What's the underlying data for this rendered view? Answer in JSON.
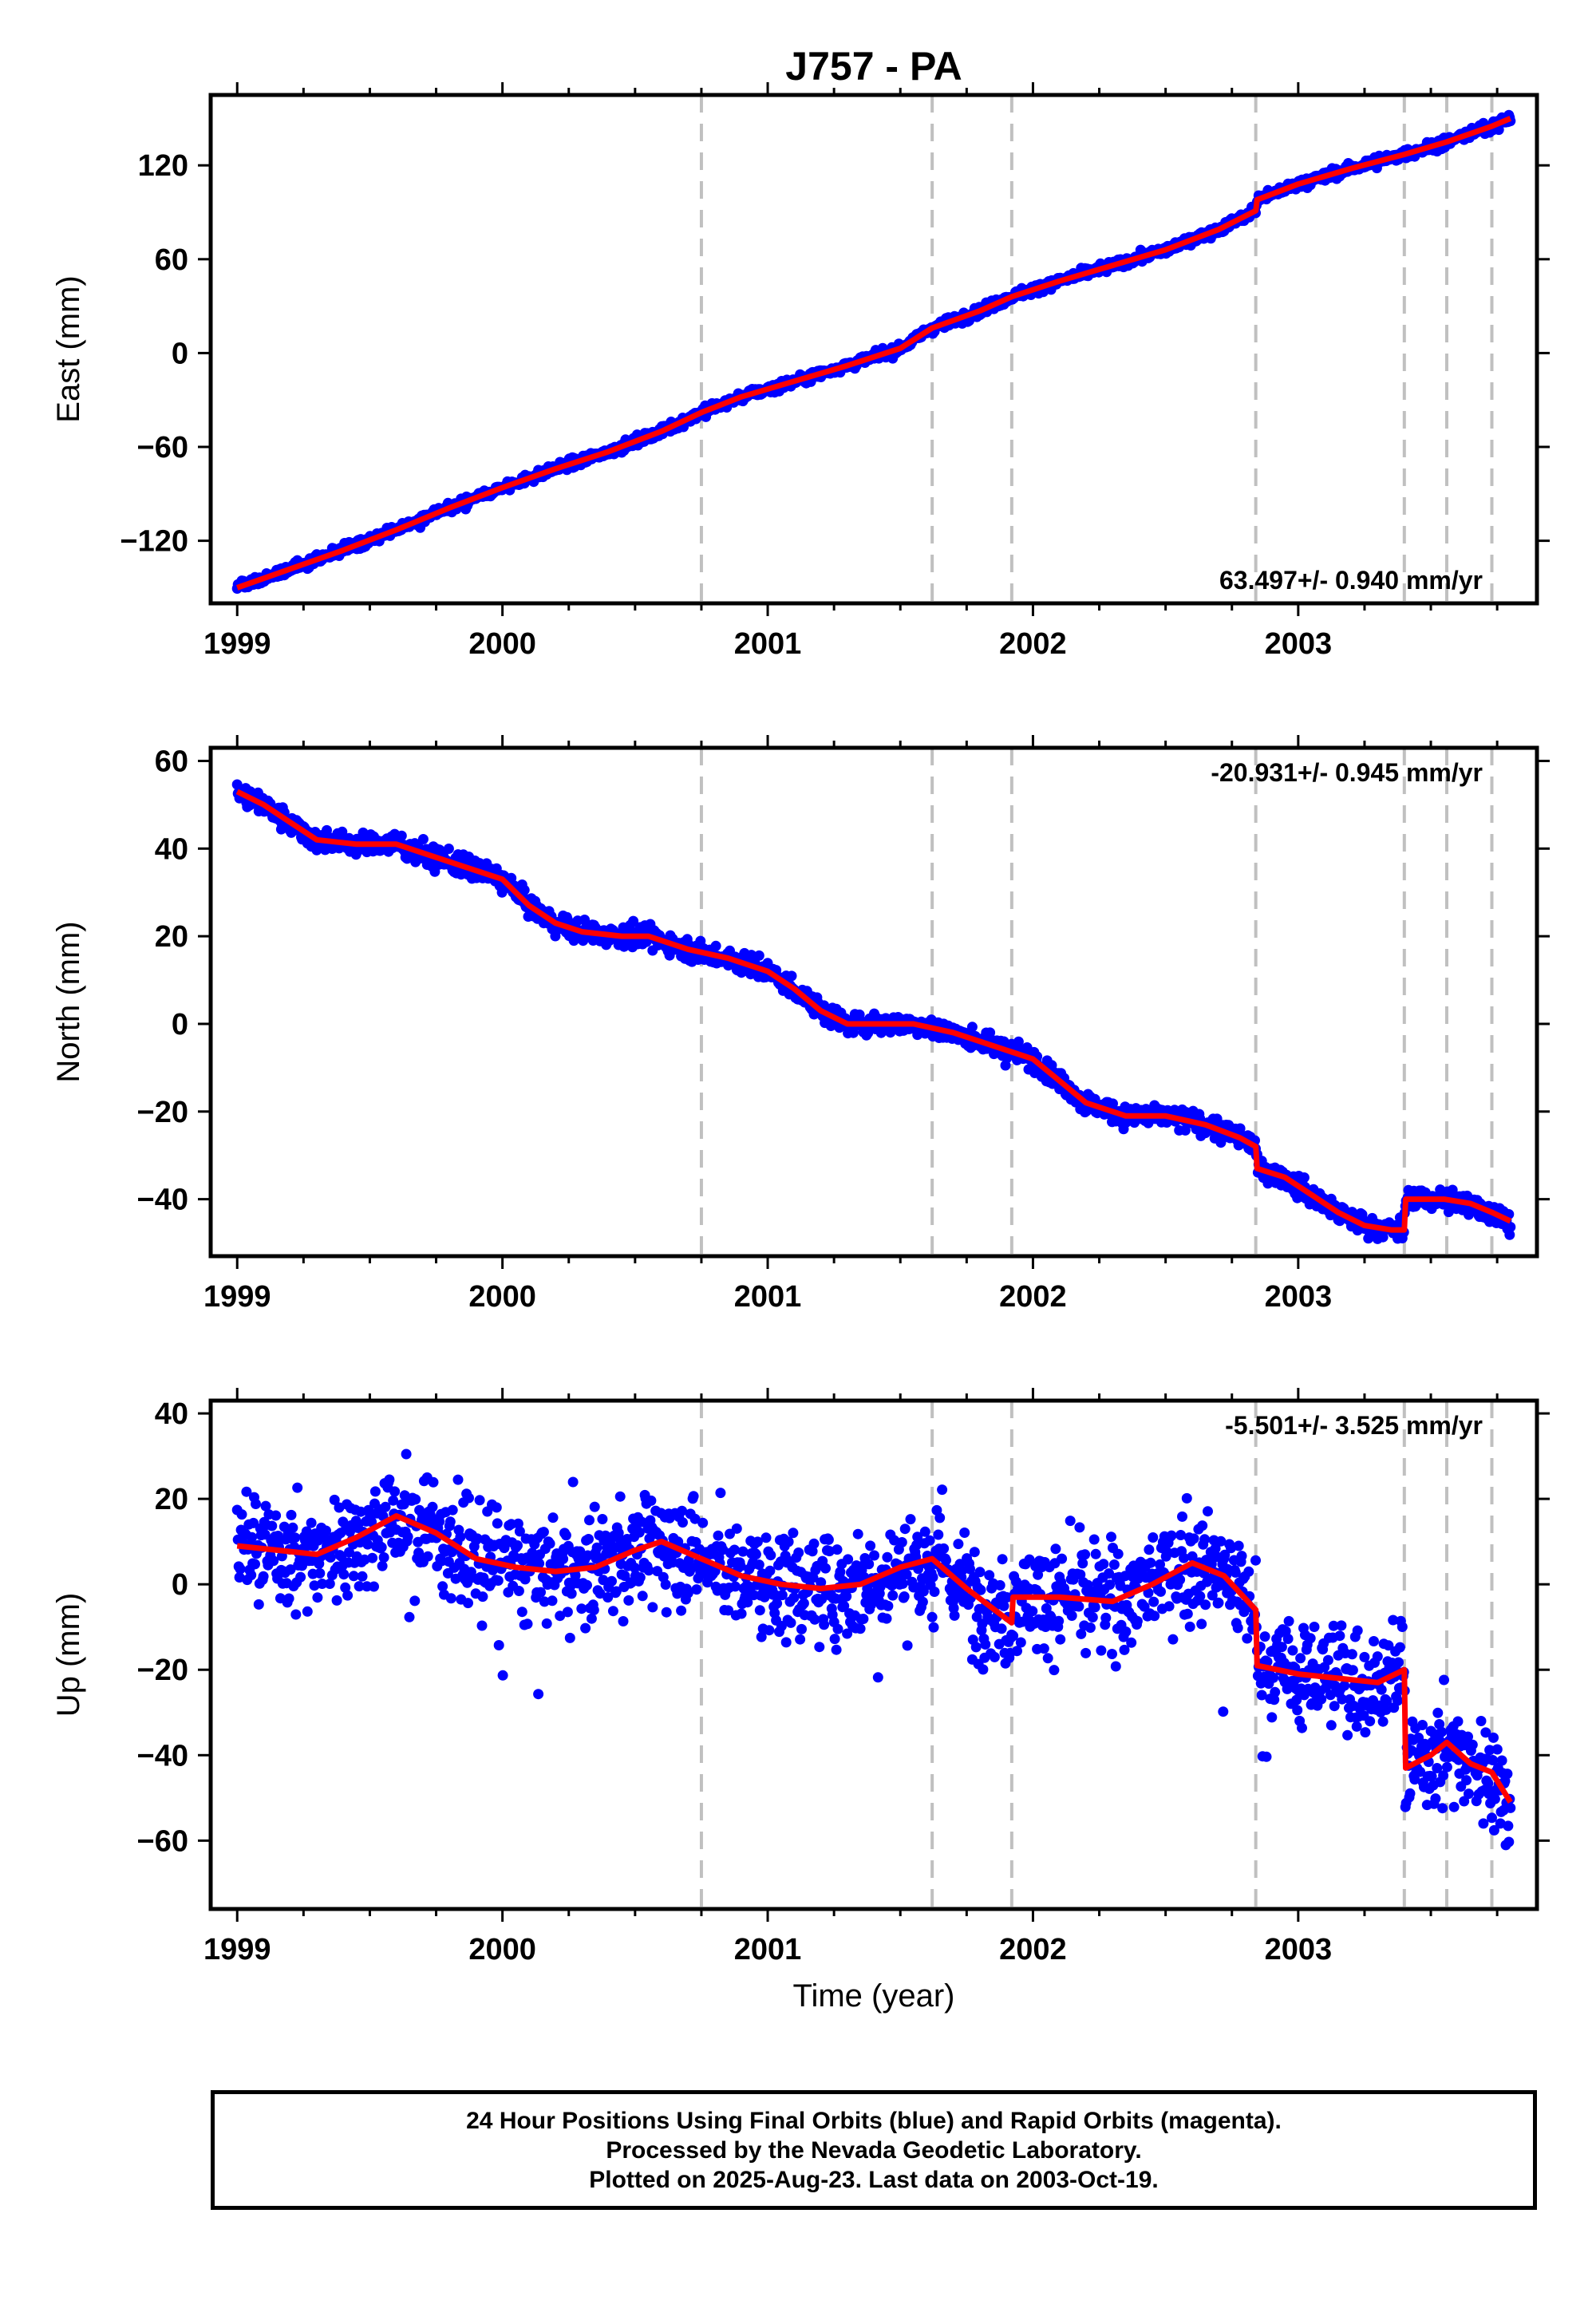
{
  "title": "J757 - PA",
  "xlabel": "Time (year)",
  "colors": {
    "final_orbits": "#0000ff",
    "model": "#ff0000",
    "breaks": "#c0c0c0",
    "frame": "#000000"
  },
  "footer": {
    "line1": "24 Hour Positions Using Final Orbits (blue) and Rapid Orbits (magenta).",
    "line2": "Processed by the Nevada Geodetic Laboratory.",
    "line3": "Plotted on 2025-Aug-23. Last data on 2003-Oct-19."
  },
  "chart_data": [
    {
      "type": "scatter",
      "ylabel": "East (mm)",
      "rate": "63.497+/- 0.940 mm/yr",
      "rate_position": "bottom-right",
      "xlim": [
        1998.9,
        2003.9
      ],
      "ylim": [
        -160,
        165
      ],
      "xticks": [
        1999,
        2000,
        2001,
        2002,
        2003
      ],
      "yticks": [
        -120,
        -60,
        0,
        60,
        120
      ],
      "breaks": [
        2000.75,
        2001.62,
        2001.92,
        2002.84,
        2003.4,
        2003.56,
        2003.73
      ],
      "model": {
        "name": "model",
        "x": [
          1999.0,
          1999.2,
          1999.4,
          1999.6,
          1999.8,
          2000.0,
          2000.2,
          2000.4,
          2000.6,
          2000.75,
          2000.9,
          2001.1,
          2001.3,
          2001.5,
          2001.62,
          2001.8,
          2001.92,
          2002.1,
          2002.3,
          2002.5,
          2002.7,
          2002.84,
          2002.845,
          2003.0,
          2003.2,
          2003.4,
          2003.56,
          2003.73,
          2003.8
        ],
        "y": [
          -150,
          -138,
          -126,
          -113,
          -99,
          -86,
          -74,
          -63,
          -50,
          -38,
          -28,
          -18,
          -8,
          3,
          16,
          27,
          36,
          46,
          56,
          66,
          79,
          91,
          98,
          108,
          118,
          127,
          135,
          145,
          150
        ]
      },
      "observations": {
        "name": "Final Orbits",
        "trend": [
          [
            1999.0,
            -150
          ],
          [
            1999.2,
            -138
          ],
          [
            1999.4,
            -126
          ],
          [
            1999.6,
            -113
          ],
          [
            1999.8,
            -99
          ],
          [
            2000.0,
            -86
          ],
          [
            2000.2,
            -74
          ],
          [
            2000.4,
            -63
          ],
          [
            2000.6,
            -50
          ],
          [
            2000.75,
            -38
          ],
          [
            2000.9,
            -28
          ],
          [
            2001.1,
            -18
          ],
          [
            2001.3,
            -8
          ],
          [
            2001.5,
            3
          ],
          [
            2001.62,
            16
          ],
          [
            2001.8,
            27
          ],
          [
            2001.92,
            36
          ],
          [
            2002.1,
            46
          ],
          [
            2002.3,
            56
          ],
          [
            2002.5,
            66
          ],
          [
            2002.7,
            79
          ],
          [
            2002.84,
            91
          ],
          [
            2002.845,
            98
          ],
          [
            2003.0,
            108
          ],
          [
            2003.2,
            118
          ],
          [
            2003.4,
            127
          ],
          [
            2003.56,
            135
          ],
          [
            2003.73,
            145
          ],
          [
            2003.8,
            150
          ]
        ],
        "scatter_sd_mm": 2.2,
        "x_range": [
          1999.0,
          2003.8
        ]
      }
    },
    {
      "type": "scatter",
      "ylabel": "North (mm)",
      "rate": "-20.931+/- 0.945 mm/yr",
      "rate_position": "top-right",
      "xlim": [
        1998.9,
        2003.9
      ],
      "ylim": [
        -53,
        63
      ],
      "xticks": [
        1999,
        2000,
        2001,
        2002,
        2003
      ],
      "yticks": [
        -40,
        -20,
        0,
        20,
        40,
        60
      ],
      "breaks": [
        2000.75,
        2001.62,
        2001.92,
        2002.84,
        2003.4,
        2003.56,
        2003.73
      ],
      "model": {
        "name": "model",
        "x": [
          1999.0,
          1999.1,
          1999.2,
          1999.3,
          1999.45,
          1999.6,
          1999.75,
          1999.9,
          2000.0,
          2000.1,
          2000.2,
          2000.3,
          2000.45,
          2000.55,
          2000.7,
          2000.85,
          2001.0,
          2001.1,
          2001.2,
          2001.3,
          2001.45,
          2001.55,
          2001.7,
          2001.85,
          2002.0,
          2002.1,
          2002.2,
          2002.35,
          2002.5,
          2002.65,
          2002.78,
          2002.84,
          2002.845,
          2002.95,
          2003.05,
          2003.15,
          2003.25,
          2003.35,
          2003.4,
          2003.405,
          2003.55,
          2003.65,
          2003.73,
          2003.8
        ],
        "y": [
          53,
          50,
          46,
          42,
          41,
          41,
          38,
          35,
          33,
          27,
          23,
          21,
          20,
          20,
          17,
          15,
          12,
          8,
          3,
          0,
          0,
          0,
          -2,
          -5,
          -8,
          -13,
          -18,
          -21,
          -21,
          -23,
          -26,
          -28,
          -33,
          -35,
          -39,
          -43,
          -46,
          -47,
          -47,
          -40,
          -40,
          -41,
          -43,
          -45
        ]
      },
      "observations": {
        "name": "Final Orbits",
        "trend": [
          [
            1999.0,
            53
          ],
          [
            1999.1,
            50
          ],
          [
            1999.2,
            46
          ],
          [
            1999.3,
            42
          ],
          [
            1999.45,
            41
          ],
          [
            1999.6,
            41
          ],
          [
            1999.75,
            38
          ],
          [
            1999.9,
            35
          ],
          [
            2000.0,
            33
          ],
          [
            2000.1,
            27
          ],
          [
            2000.2,
            23
          ],
          [
            2000.3,
            21
          ],
          [
            2000.45,
            20
          ],
          [
            2000.55,
            20
          ],
          [
            2000.7,
            17
          ],
          [
            2000.85,
            15
          ],
          [
            2001.0,
            12
          ],
          [
            2001.1,
            8
          ],
          [
            2001.2,
            3
          ],
          [
            2001.3,
            0
          ],
          [
            2001.45,
            0
          ],
          [
            2001.55,
            0
          ],
          [
            2001.7,
            -2
          ],
          [
            2001.85,
            -5
          ],
          [
            2002.0,
            -8
          ],
          [
            2002.1,
            -13
          ],
          [
            2002.2,
            -18
          ],
          [
            2002.35,
            -21
          ],
          [
            2002.5,
            -21
          ],
          [
            2002.65,
            -23
          ],
          [
            2002.78,
            -26
          ],
          [
            2002.84,
            -28
          ],
          [
            2002.845,
            -33
          ],
          [
            2002.95,
            -35
          ],
          [
            2003.05,
            -39
          ],
          [
            2003.15,
            -43
          ],
          [
            2003.25,
            -46
          ],
          [
            2003.35,
            -47
          ],
          [
            2003.4,
            -47
          ],
          [
            2003.405,
            -40
          ],
          [
            2003.55,
            -40
          ],
          [
            2003.65,
            -41
          ],
          [
            2003.73,
            -43
          ],
          [
            2003.8,
            -45
          ]
        ],
        "scatter_sd_mm": 1.7,
        "x_range": [
          1999.0,
          2003.8
        ]
      }
    },
    {
      "type": "scatter",
      "ylabel": "Up (mm)",
      "rate": "-5.501+/- 3.525 mm/yr",
      "rate_position": "top-right",
      "xlim": [
        1998.9,
        2003.9
      ],
      "ylim": [
        -76,
        43
      ],
      "xticks": [
        1999,
        2000,
        2001,
        2002,
        2003
      ],
      "yticks": [
        -60,
        -40,
        -20,
        0,
        20,
        40
      ],
      "breaks": [
        2000.75,
        2001.62,
        2001.92,
        2002.84,
        2003.4,
        2003.56,
        2003.73
      ],
      "model": {
        "name": "model",
        "x": [
          1999.0,
          1999.15,
          1999.3,
          1999.45,
          1999.6,
          1999.75,
          1999.9,
          2000.05,
          2000.2,
          2000.35,
          2000.5,
          2000.6,
          2000.75,
          2000.9,
          2001.05,
          2001.2,
          2001.35,
          2001.5,
          2001.62,
          2001.75,
          2001.92,
          2001.925,
          2002.1,
          2002.3,
          2002.45,
          2002.6,
          2002.72,
          2002.84,
          2002.845,
          2003.0,
          2003.15,
          2003.3,
          2003.4,
          2003.405,
          2003.5,
          2003.56,
          2003.65,
          2003.73,
          2003.8
        ],
        "y": [
          9,
          8,
          7,
          11,
          16,
          12,
          6,
          4,
          3,
          4,
          8,
          10,
          6,
          2,
          0,
          -1,
          0,
          4,
          6,
          -1,
          -9,
          -3,
          -3,
          -4,
          0,
          5,
          2,
          -6,
          -19,
          -21,
          -22,
          -23,
          -20,
          -43,
          -40,
          -37,
          -42,
          -44,
          -51
        ]
      },
      "observations": {
        "name": "Final Orbits",
        "trend": [
          [
            1999.0,
            9
          ],
          [
            1999.15,
            8
          ],
          [
            1999.3,
            7
          ],
          [
            1999.45,
            11
          ],
          [
            1999.6,
            16
          ],
          [
            1999.75,
            12
          ],
          [
            1999.9,
            6
          ],
          [
            2000.05,
            4
          ],
          [
            2000.2,
            3
          ],
          [
            2000.35,
            4
          ],
          [
            2000.5,
            8
          ],
          [
            2000.6,
            10
          ],
          [
            2000.75,
            6
          ],
          [
            2000.9,
            2
          ],
          [
            2001.05,
            0
          ],
          [
            2001.2,
            -1
          ],
          [
            2001.35,
            0
          ],
          [
            2001.5,
            4
          ],
          [
            2001.62,
            6
          ],
          [
            2001.75,
            -1
          ],
          [
            2001.92,
            -9
          ],
          [
            2001.925,
            -3
          ],
          [
            2002.1,
            -3
          ],
          [
            2002.3,
            -4
          ],
          [
            2002.45,
            0
          ],
          [
            2002.6,
            5
          ],
          [
            2002.72,
            2
          ],
          [
            2002.84,
            -6
          ],
          [
            2002.845,
            -19
          ],
          [
            2003.0,
            -21
          ],
          [
            2003.15,
            -22
          ],
          [
            2003.3,
            -23
          ],
          [
            2003.4,
            -20
          ],
          [
            2003.405,
            -43
          ],
          [
            2003.5,
            -40
          ],
          [
            2003.56,
            -37
          ],
          [
            2003.65,
            -42
          ],
          [
            2003.73,
            -44
          ],
          [
            2003.8,
            -51
          ]
        ],
        "scatter_sd_mm": 8.5,
        "x_range": [
          1999.0,
          2003.8
        ]
      }
    }
  ]
}
